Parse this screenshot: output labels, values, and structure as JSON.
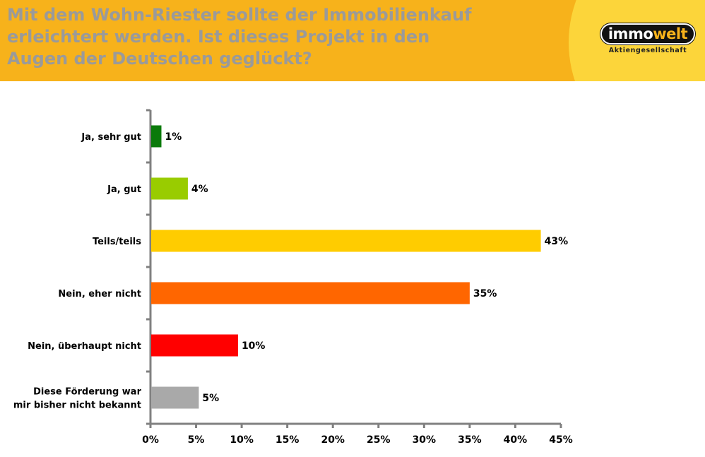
{
  "header": {
    "title_lines": [
      "Mit dem Wohn-Riester sollte der Immobilienkauf",
      "erleichtert werden. Ist dieses Projekt in den",
      "Augen der Deutschen geglückt?"
    ],
    "logo": {
      "word_part1": "immo",
      "word_part2": "welt",
      "subtitle": "Aktiengesellschaft"
    }
  },
  "chart_data": {
    "type": "bar",
    "orientation": "horizontal",
    "title": "Mit dem Wohn-Riester sollte der Immobilienkauf erleichtert werden. Ist dieses Projekt in den Augen der Deutschen geglückt?",
    "categories": [
      [
        "Ja, sehr gut"
      ],
      [
        "Ja, gut"
      ],
      [
        "Teils/teils"
      ],
      [
        "Nein, eher nicht"
      ],
      [
        "Nein, überhaupt nicht"
      ],
      [
        "Diese Förderung war",
        "mir bisher nicht bekannt"
      ]
    ],
    "values": [
      1.2,
      4.1,
      42.8,
      35.0,
      9.6,
      5.3
    ],
    "value_labels": [
      "1%",
      "4%",
      "43%",
      "35%",
      "10%",
      "5%"
    ],
    "colors": [
      "#0a7a0a",
      "#99cc00",
      "#ffcc00",
      "#ff6600",
      "#ff0000",
      "#a9a9a9"
    ],
    "xlim": [
      0,
      45
    ],
    "ticks": [
      0,
      5,
      10,
      15,
      20,
      25,
      30,
      35,
      40,
      45
    ],
    "tick_labels": [
      "0%",
      "5%",
      "10%",
      "15%",
      "20%",
      "25%",
      "30%",
      "35%",
      "40%",
      "45%"
    ],
    "xlabel": "",
    "ylabel": "",
    "grid": false,
    "legend": "none",
    "axis_color": "#808080"
  }
}
